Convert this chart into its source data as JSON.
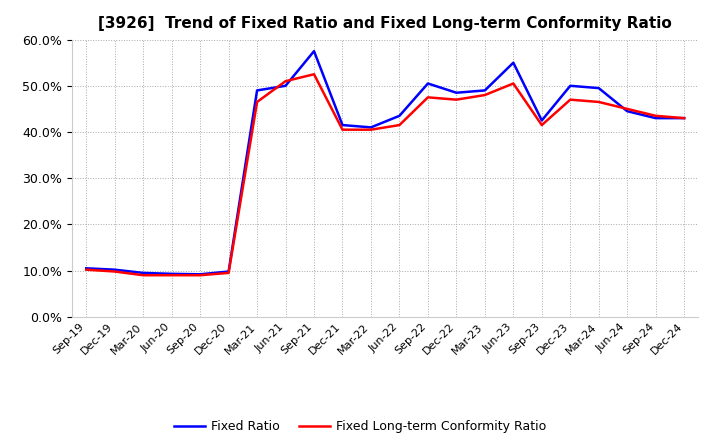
{
  "title": "[3926]  Trend of Fixed Ratio and Fixed Long-term Conformity Ratio",
  "x_labels": [
    "Sep-19",
    "Dec-19",
    "Mar-20",
    "Jun-20",
    "Sep-20",
    "Dec-20",
    "Mar-21",
    "Jun-21",
    "Sep-21",
    "Dec-21",
    "Mar-22",
    "Jun-22",
    "Sep-22",
    "Dec-22",
    "Mar-23",
    "Jun-23",
    "Sep-23",
    "Dec-23",
    "Mar-24",
    "Jun-24",
    "Sep-24",
    "Dec-24"
  ],
  "fixed_ratio": [
    10.5,
    10.2,
    9.5,
    9.3,
    9.2,
    9.8,
    49.0,
    50.0,
    57.5,
    41.5,
    41.0,
    43.5,
    50.5,
    48.5,
    49.0,
    55.0,
    42.5,
    50.0,
    49.5,
    44.5,
    43.0,
    43.0
  ],
  "fixed_lt_ratio": [
    10.2,
    9.8,
    9.0,
    9.0,
    9.0,
    9.5,
    46.5,
    51.0,
    52.5,
    40.5,
    40.5,
    41.5,
    47.5,
    47.0,
    48.0,
    50.5,
    41.5,
    47.0,
    46.5,
    45.0,
    43.5,
    43.0
  ],
  "fixed_ratio_color": "#0000FF",
  "fixed_lt_ratio_color": "#FF0000",
  "ylim": [
    0,
    60
  ],
  "yticks": [
    0.0,
    10.0,
    20.0,
    30.0,
    40.0,
    50.0,
    60.0
  ],
  "background_color": "#FFFFFF",
  "grid_color": "#AAAAAA",
  "line_width": 1.8,
  "title_fontsize": 11,
  "tick_label_fontsize": 8,
  "legend_fontsize": 9
}
